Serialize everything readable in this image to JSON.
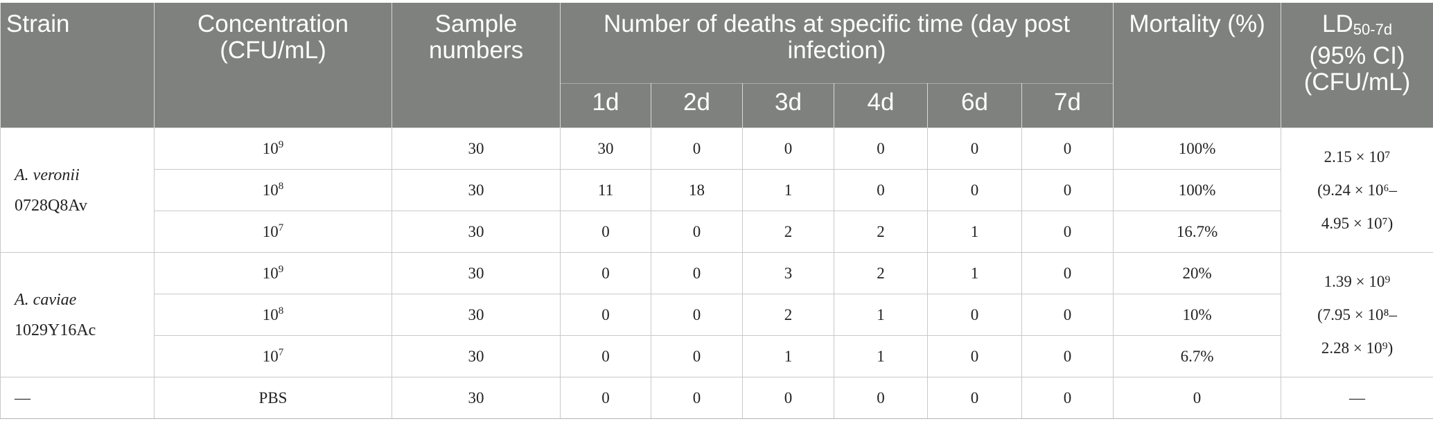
{
  "headers": {
    "strain": "Strain",
    "concentration": "Concentration (CFU/mL)",
    "sample": "Sample numbers",
    "deaths": "Number of deaths at specific time (day post infection)",
    "mortality": "Mortality (%)",
    "ld_main": "LD",
    "ld_sub": "50-7d",
    "ld_ci": "(95% CI)",
    "ld_unit": "(CFU/mL)",
    "days": [
      "1d",
      "2d",
      "3d",
      "4d",
      "6d",
      "7d"
    ]
  },
  "groups": [
    {
      "strain_species": "A. veronii",
      "strain_id": "0728Q8Av",
      "ld_lines": [
        "2.15 × 10⁷",
        "(9.24 × 10⁶–",
        "4.95 × 10⁷)"
      ],
      "rows": [
        {
          "conc_base": "10",
          "conc_exp": "9",
          "sample": "30",
          "deaths": [
            "30",
            "0",
            "0",
            "0",
            "0",
            "0"
          ],
          "mortality": "100%"
        },
        {
          "conc_base": "10",
          "conc_exp": "8",
          "sample": "30",
          "deaths": [
            "11",
            "18",
            "1",
            "0",
            "0",
            "0"
          ],
          "mortality": "100%"
        },
        {
          "conc_base": "10",
          "conc_exp": "7",
          "sample": "30",
          "deaths": [
            "0",
            "0",
            "2",
            "2",
            "1",
            "0"
          ],
          "mortality": "16.7%"
        }
      ]
    },
    {
      "strain_species": "A. caviae",
      "strain_id": "1029Y16Ac",
      "ld_lines": [
        "1.39 × 10⁹",
        "(7.95 × 10⁸–",
        "2.28 × 10⁹)"
      ],
      "rows": [
        {
          "conc_base": "10",
          "conc_exp": "9",
          "sample": "30",
          "deaths": [
            "0",
            "0",
            "3",
            "2",
            "1",
            "0"
          ],
          "mortality": "20%"
        },
        {
          "conc_base": "10",
          "conc_exp": "8",
          "sample": "30",
          "deaths": [
            "0",
            "0",
            "2",
            "1",
            "0",
            "0"
          ],
          "mortality": "10%"
        },
        {
          "conc_base": "10",
          "conc_exp": "7",
          "sample": "30",
          "deaths": [
            "0",
            "0",
            "1",
            "1",
            "0",
            "0"
          ],
          "mortality": "6.7%"
        }
      ]
    }
  ],
  "control": {
    "strain": "—",
    "concentration": "PBS",
    "sample": "30",
    "deaths": [
      "0",
      "0",
      "0",
      "0",
      "0",
      "0"
    ],
    "mortality": "0",
    "ld": "—"
  }
}
